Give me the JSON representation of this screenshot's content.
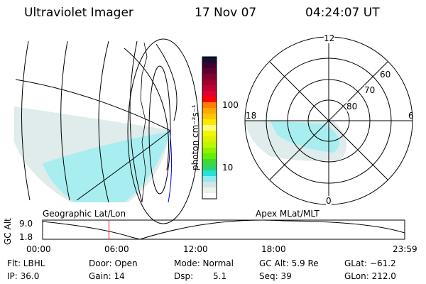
{
  "header": {
    "instrument": "Ultraviolet Imager",
    "date": "17 Nov 07",
    "time": "04:24:07 UT"
  },
  "colorbar": {
    "label": "photon cm⁻²s⁻¹",
    "ticks": [
      "100",
      "10"
    ],
    "colors": [
      "#ffffff",
      "#e8f4ec",
      "#d4e4e4",
      "#90ecf0",
      "#28e0d8",
      "#28d868",
      "#40d838",
      "#60f000",
      "#90f000",
      "#b8f800",
      "#e0f000",
      "#f0f800",
      "#ffff80",
      "#ffe800",
      "#ffc800",
      "#ffa800",
      "#ff8000",
      "#ff0000",
      "#e00030",
      "#c00030",
      "#a00030",
      "#800030",
      "#600030",
      "#400030",
      "#101030"
    ]
  },
  "polar": {
    "mlt_labels": {
      "top": "12",
      "bottom": "0",
      "left": "18",
      "right": "6"
    },
    "lat_labels": [
      "60",
      "70",
      "80"
    ]
  },
  "map_labels": {
    "left": "Geographic Lat/Lon",
    "right": "Apex MLat/MLT"
  },
  "altplot": {
    "ylabel": "GC Alt",
    "yticks": [
      "9.0",
      "1.8"
    ],
    "xticks": [
      "00:00",
      "06:00",
      "12:00",
      "18:00",
      "23:59"
    ],
    "current_hours": 4.4
  },
  "status": {
    "filter": "Flt: LBHL",
    "ip": "IP: 36.0",
    "door": "Door: Open",
    "gain": "Gain: 14",
    "mode": "Mode: Normal",
    "dsp_label": "Dsp:",
    "dsp_value": "5.1",
    "gc_alt": "GC Alt: 5.9 Re",
    "seq": "Seq: 39",
    "glat": "GLat: −61.2",
    "glon": "GLon: 212.0"
  }
}
